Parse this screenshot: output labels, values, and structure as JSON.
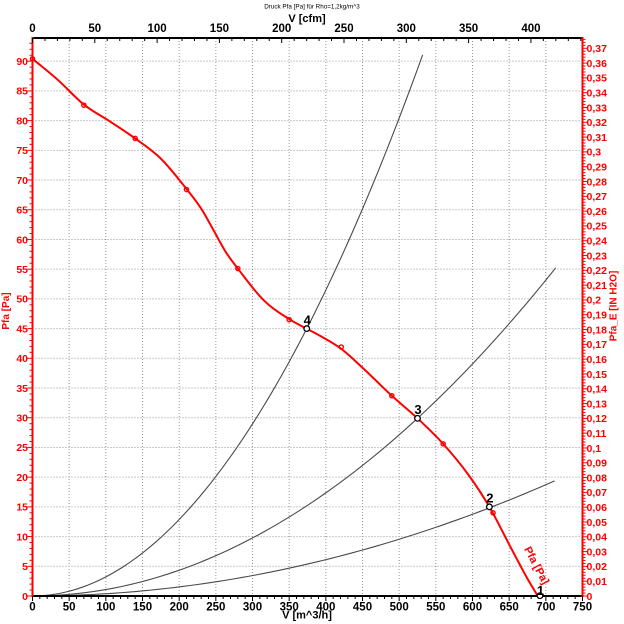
{
  "page": {
    "background": "#ffffff"
  },
  "chart_data": {
    "type": "line",
    "title": "Druck Pfa [Pa] für Rho=1,2kg/m^3",
    "legend_position": "none",
    "grid": {
      "vertical_step_m3h": 50,
      "horizontal_step_pa": 5,
      "style": "dotted",
      "color": "#959595"
    },
    "axes": {
      "bottom": {
        "label": "V [m^3/h]",
        "min": 0,
        "max": 750,
        "major_step": 50,
        "minor_step": 10,
        "color": "#000000"
      },
      "top": {
        "label": "V [cfm]",
        "min": 0,
        "max": 441.4,
        "major_step": 50,
        "minor_step": 10,
        "last_major_label": 400,
        "color": "#000000"
      },
      "left": {
        "label": "Pfa [Pa]",
        "min": 0,
        "max": 93.9,
        "major_step": 5,
        "minor_step": 1,
        "color": "#ff0000"
      },
      "right": {
        "label": "Pfa_E [IN H2O]",
        "min": 0,
        "max": 0.37695,
        "major_step": 0.01,
        "minor_step": 0.002,
        "decimal_comma": true,
        "color": "#ff0000"
      }
    },
    "fan_curve": {
      "name": "Pfa [Pa]",
      "color": "#ff0000",
      "trace": [
        [
          0,
          90.4
        ],
        [
          35,
          86.8
        ],
        [
          70,
          82.7
        ],
        [
          105,
          79.9
        ],
        [
          140,
          77.0
        ],
        [
          175,
          73.6
        ],
        [
          210,
          68.5
        ],
        [
          230,
          65.2
        ],
        [
          248,
          61.3
        ],
        [
          264,
          57.8
        ],
        [
          280,
          55.1
        ],
        [
          315,
          49.8
        ],
        [
          350,
          46.6
        ],
        [
          392,
          43.8
        ],
        [
          421,
          41.6
        ],
        [
          451,
          38.3
        ],
        [
          490,
          33.7
        ],
        [
          525,
          29.9
        ],
        [
          560,
          25.6
        ],
        [
          595,
          20.3
        ],
        [
          623,
          15.0
        ],
        [
          652,
          8.2
        ],
        [
          675,
          2.9
        ],
        [
          689,
          0
        ]
      ],
      "markers": [
        [
          0,
          90.4
        ],
        [
          70,
          82.6
        ],
        [
          140,
          77.0
        ],
        [
          210,
          68.4
        ],
        [
          280,
          55.1
        ],
        [
          350,
          46.5
        ],
        [
          421,
          41.9
        ],
        [
          490,
          33.7
        ],
        [
          560,
          25.6
        ],
        [
          628,
          14.0
        ]
      ],
      "curve_label": {
        "text": "Pfa [Pa]",
        "v": 670,
        "pa": 7.9,
        "angle_deg": 62
      }
    },
    "system_curves": [
      {
        "name": "system-curve-4",
        "color": "#4a4a4a",
        "through": [
          374,
          45.0
        ],
        "v_end": 532
      },
      {
        "name": "system-curve-3",
        "color": "#4a4a4a",
        "through": [
          525,
          29.9
        ],
        "v_end": 713.5
      },
      {
        "name": "system-curve-2",
        "color": "#4a4a4a",
        "through": [
          640,
          15.65
        ],
        "v_end": 712
      }
    ],
    "operating_points": [
      {
        "label": "4",
        "v": 374,
        "pa": 45.0
      },
      {
        "label": "3",
        "v": 525,
        "pa": 29.9
      },
      {
        "label": "2",
        "v": 623,
        "pa": 15.0
      },
      {
        "label": "1",
        "v": 692,
        "pa": 0.05,
        "label_dy": -0.8
      }
    ]
  }
}
